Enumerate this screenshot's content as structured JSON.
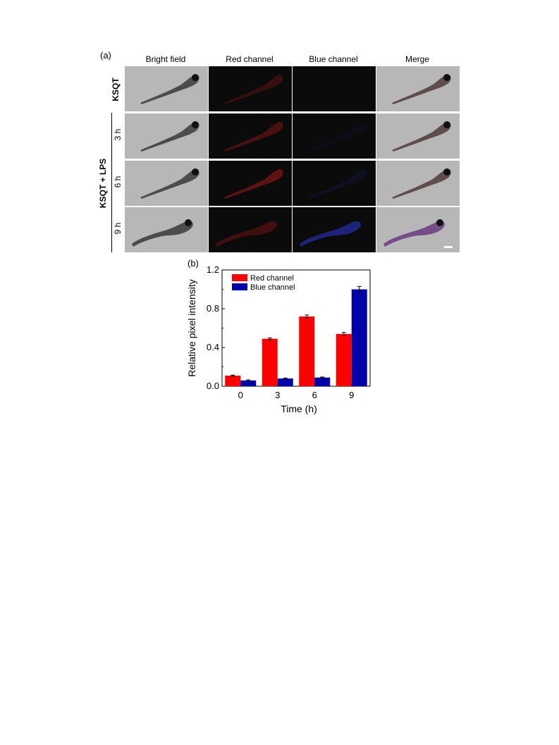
{
  "panel_a": {
    "label": "(a)",
    "columns": [
      "Bright field",
      "Red channel",
      "Blue channel",
      "Merge"
    ],
    "row_labels": {
      "control": "KSQT",
      "group": "KSQT + LPS",
      "times": [
        "3 h",
        "6 h",
        "9 h"
      ]
    },
    "icons": [
      "zebrafish-larva-icon",
      "scale-bar-icon"
    ]
  },
  "panel_b": {
    "label": "(b)"
  },
  "chart_data": {
    "type": "bar",
    "categories": [
      "0",
      "3",
      "6",
      "9"
    ],
    "series": [
      {
        "name": "Red channel",
        "color": "#ff0000",
        "values": [
          0.11,
          0.49,
          0.72,
          0.54
        ],
        "errors": [
          0.005,
          0.01,
          0.015,
          0.015
        ]
      },
      {
        "name": "Blue channel",
        "color": "#0000aa",
        "values": [
          0.06,
          0.08,
          0.09,
          1.0
        ],
        "errors": [
          0.005,
          0.005,
          0.005,
          0.03
        ]
      }
    ],
    "xlabel": "Time (h)",
    "ylabel": "Relative pixel intensity",
    "ylim": [
      0,
      1.2
    ],
    "yticks": [
      "0.0",
      "0.4",
      "0.8",
      "1.2"
    ],
    "legend_position": "top-left",
    "grid": false
  }
}
